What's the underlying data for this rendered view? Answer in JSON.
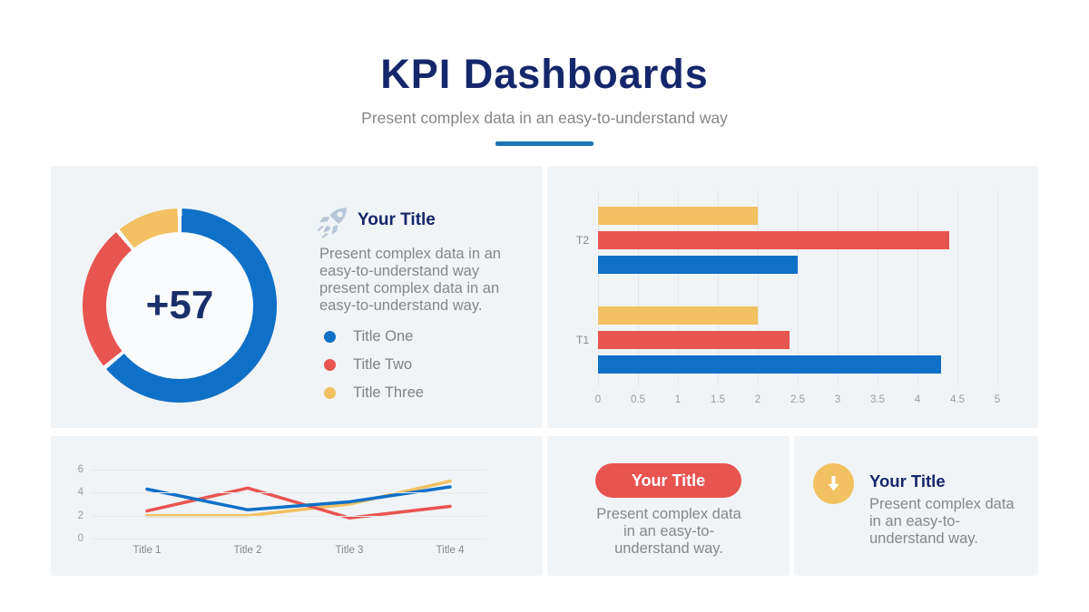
{
  "header": {
    "title": "KPI Dashboards",
    "subtitle": "Present complex data in an easy-to-understand way"
  },
  "colors": {
    "navy": "#15276B",
    "blue": "#0F70C7",
    "red": "#E85450",
    "yellow": "#F2C161",
    "gray_text": "#85878A",
    "card_bg": "#F1F4F6",
    "underline_blue": "#1E73B5",
    "rocket_gray_blue": "#B8C6D8"
  },
  "donut_card": {
    "icon": "rocket-icon",
    "title": "Your Title",
    "body": "Present complex data in an easy-to-understand way present complex data in an easy-to-understand way.",
    "legend": [
      {
        "label": "Title One",
        "color": "#0F70C7"
      },
      {
        "label": "Title Two",
        "color": "#E85450"
      },
      {
        "label": "Title Three",
        "color": "#F2C161"
      }
    ]
  },
  "button_card": {
    "button_label": "Your Title",
    "body": "Present complex data in an easy-to-understand way."
  },
  "arrow_card": {
    "icon": "down-arrow-icon",
    "title": "Your Title",
    "body": "Present complex data in an easy-to-understand way."
  },
  "chart_data": [
    {
      "type": "pie",
      "subtype": "donut",
      "center_label": "+57",
      "segments": [
        {
          "name": "Title One",
          "color": "#0F70C7",
          "percent": 64
        },
        {
          "name": "Title Two",
          "color": "#E85450",
          "percent": 25
        },
        {
          "name": "Title Three",
          "color": "#F2C161",
          "percent": 11
        }
      ],
      "legend_position": "right"
    },
    {
      "type": "bar",
      "orientation": "horizontal",
      "categories": [
        "T1",
        "T2"
      ],
      "series": [
        {
          "name": "Title One",
          "color": "#0F70C7",
          "values": [
            4.3,
            2.5
          ]
        },
        {
          "name": "Title Two",
          "color": "#E85450",
          "values": [
            2.4,
            4.4
          ]
        },
        {
          "name": "Title Three",
          "color": "#F2C161",
          "values": [
            2.0,
            2.0
          ]
        }
      ],
      "xlim": [
        0,
        5
      ],
      "xticks": [
        0,
        0.5,
        1,
        1.5,
        2,
        2.5,
        3,
        3.5,
        4,
        4.5,
        5
      ],
      "grid": true
    },
    {
      "type": "line",
      "categories": [
        "Title 1",
        "Title 2",
        "Title 3",
        "Title 4"
      ],
      "series": [
        {
          "name": "Title One",
          "color": "#0F70C7",
          "values": [
            4.3,
            2.5,
            3.2,
            4.5
          ]
        },
        {
          "name": "Title Two",
          "color": "#E85450",
          "values": [
            2.4,
            4.4,
            1.8,
            2.8
          ]
        },
        {
          "name": "Title Three",
          "color": "#F2C161",
          "values": [
            2.0,
            2.0,
            3.0,
            5.0
          ]
        }
      ],
      "ylim": [
        0,
        7
      ],
      "yticks": [
        0,
        2,
        4,
        6
      ],
      "grid": true
    }
  ]
}
